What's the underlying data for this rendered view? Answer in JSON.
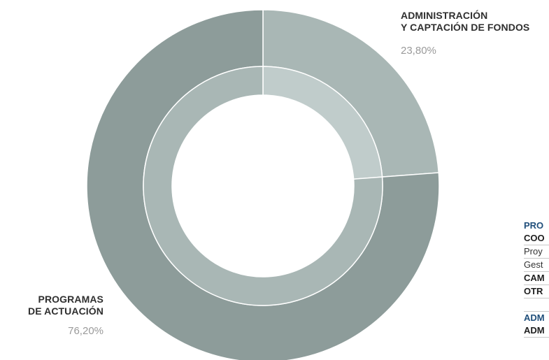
{
  "chart_data": {
    "type": "pie",
    "title": "",
    "variant": "donut",
    "slices": [
      {
        "label_lines": [
          "ADMINISTRACIÓN",
          "Y CAPTACIÓN DE FONDOS"
        ],
        "value": 23.8,
        "value_text": "23,80%",
        "color_outer": "#a9b7b5",
        "color_inner": "#c0cccb"
      },
      {
        "label_lines": [
          "PROGRAMAS",
          "DE ACTUACIÓN"
        ],
        "value": 76.2,
        "value_text": "76,20%",
        "color_outer": "#8d9c9a",
        "color_inner": "#a9b7b5"
      }
    ],
    "label_color": "#2f2f2f",
    "value_color": "#9a9a9a"
  },
  "side_table": {
    "rows": [
      {
        "text": "PRO",
        "style": "hdr"
      },
      {
        "text": "COO",
        "style": "bold"
      },
      {
        "text": "Proy",
        "style": "plain"
      },
      {
        "text": "Gest",
        "style": "plain"
      },
      {
        "text": "CAM",
        "style": "bold"
      },
      {
        "text": "OTR",
        "style": "bold"
      },
      {
        "text": "",
        "style": "gap"
      },
      {
        "text": "ADM",
        "style": "hdr"
      },
      {
        "text": "ADM",
        "style": "bold"
      }
    ]
  }
}
